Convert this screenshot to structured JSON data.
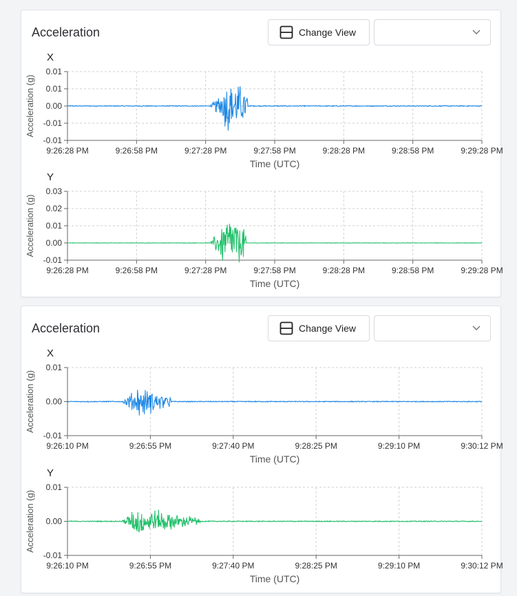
{
  "cards": [
    {
      "title": "Acceleration",
      "change_view_label": "Change View",
      "select_value": ""
    },
    {
      "title": "Acceleration",
      "change_view_label": "Change View",
      "select_value": ""
    }
  ],
  "icons": {
    "view": "split-view-icon",
    "select": "chevron-down-icon"
  },
  "colors": {
    "x_series": "#1e88e5",
    "y_series": "#22c06b",
    "grid": "#cfcfcf",
    "axis": "#666666"
  },
  "chart_data": [
    {
      "type": "line",
      "panel_label": "X",
      "ylabel": "Acceleration (g)",
      "xlabel": "Time (UTC)",
      "yticks": [
        "0.01",
        "0.01",
        "0.00",
        "-0.01",
        "-0.01"
      ],
      "xticks": [
        "9:26:28 PM",
        "9:26:58 PM",
        "9:27:28 PM",
        "9:27:58 PM",
        "9:28:28 PM",
        "9:28:58 PM",
        "9:29:28 PM"
      ],
      "ylim": [
        -0.01,
        0.01
      ],
      "series": [
        {
          "color": "#1e88e5",
          "event_start": 0.345,
          "event_peak": 0.39,
          "event_end": 0.435,
          "peak_amplitude": 0.009
        }
      ]
    },
    {
      "type": "line",
      "panel_label": "Y",
      "ylabel": "Acceleration (g)",
      "xlabel": "Time (UTC)",
      "yticks": [
        "0.03",
        "0.02",
        "0.01",
        "0.00",
        "-0.01"
      ],
      "xticks": [
        "9:26:28 PM",
        "9:26:58 PM",
        "9:27:28 PM",
        "9:27:58 PM",
        "9:28:28 PM",
        "9:28:58 PM",
        "9:29:28 PM"
      ],
      "ylim": [
        -0.01,
        0.03
      ],
      "series": [
        {
          "color": "#22c06b",
          "event_start": 0.345,
          "event_peak": 0.39,
          "event_end": 0.43,
          "peak_amplitude": 0.02
        }
      ]
    },
    {
      "type": "line",
      "panel_label": "X",
      "ylabel": "Acceleration (g)",
      "xlabel": "Time (UTC)",
      "yticks": [
        "0.01",
        "0.00",
        "-0.01"
      ],
      "xticks": [
        "9:26:10 PM",
        "9:26:55 PM",
        "9:27:40 PM",
        "9:28:25 PM",
        "9:29:10 PM",
        "9:30:12 PM"
      ],
      "ylim": [
        -0.01,
        0.01
      ],
      "series": [
        {
          "color": "#1e88e5",
          "event_start": 0.13,
          "event_peak": 0.17,
          "event_end": 0.25,
          "peak_amplitude": 0.005
        }
      ]
    },
    {
      "type": "line",
      "panel_label": "Y",
      "ylabel": "Acceleration (g)",
      "xlabel": "Time (UTC)",
      "yticks": [
        "0.01",
        "0.00",
        "-0.01"
      ],
      "xticks": [
        "9:26:10 PM",
        "9:26:55 PM",
        "9:27:40 PM",
        "9:28:25 PM",
        "9:29:10 PM",
        "9:30:12 PM"
      ],
      "ylim": [
        -0.01,
        0.01
      ],
      "series": [
        {
          "color": "#22c06b",
          "event_start": 0.13,
          "event_peak": 0.17,
          "event_end": 0.32,
          "peak_amplitude": 0.005
        }
      ]
    }
  ]
}
